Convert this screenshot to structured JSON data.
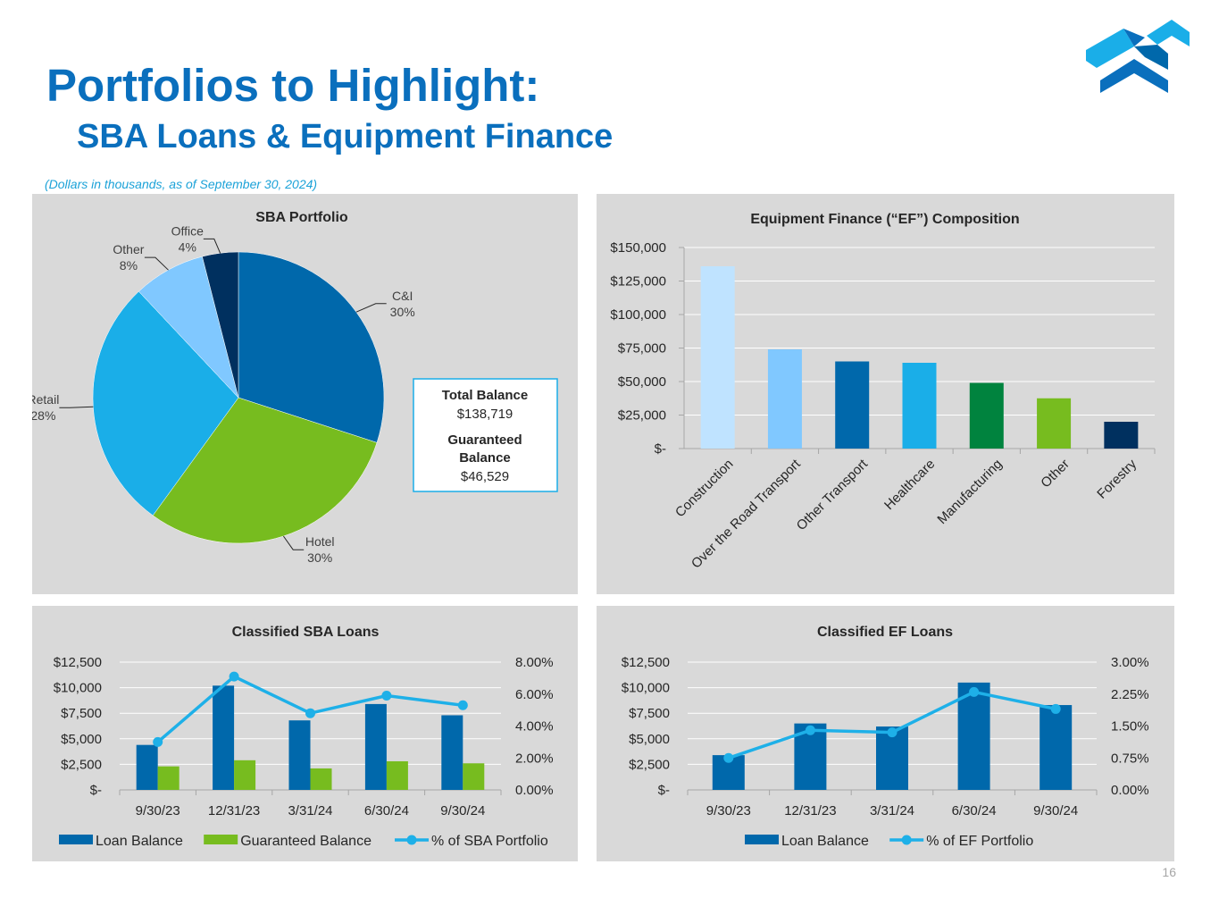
{
  "header": {
    "title": "Portfolios to Highlight:",
    "subtitle": "SBA Loans & Equipment Finance",
    "note": "(Dollars in thousands, as of September 30, 2024)"
  },
  "page_number": "16",
  "colors": {
    "accent": "#0a6fbd",
    "dark_blue": "#0068ab",
    "navy": "#00305f",
    "sky": "#1aaee8",
    "light_sky": "#80c8ff",
    "pale_sky": "#bfe3ff",
    "green": "#77bc1f",
    "dark_green": "#00833e",
    "line": "#1eb0e8",
    "panel": "#d9d9d9"
  },
  "chart_data": [
    {
      "type": "pie",
      "title": "SBA Portfolio",
      "labels": [
        "C&I",
        "Hotel",
        "Retail",
        "Other",
        "Office"
      ],
      "values": [
        30,
        30,
        28,
        8,
        4
      ],
      "value_labels": [
        "30%",
        "30%",
        "28%",
        "8%",
        "4%"
      ],
      "colors": [
        "#0068ab",
        "#77bc1f",
        "#1aaee8",
        "#80c8ff",
        "#00305f"
      ],
      "info_box": {
        "total_label": "Total Balance",
        "total_value": "$138,719",
        "guaranteed_label_1": "Guaranteed",
        "guaranteed_label_2": "Balance",
        "guaranteed_value": "$46,529"
      }
    },
    {
      "type": "bar",
      "title": "Equipment Finance (“EF”) Composition",
      "categories": [
        "Construction",
        "Over the Road Transport",
        "Other Transport",
        "Healthcare",
        "Manufacturing",
        "Other",
        "Forestry"
      ],
      "values": [
        136000,
        74000,
        65000,
        64000,
        49000,
        37500,
        20000
      ],
      "colors": [
        "#bfe3ff",
        "#80c8ff",
        "#0068ab",
        "#1aaee8",
        "#00833e",
        "#77bc1f",
        "#00305f"
      ],
      "ylim": [
        0,
        150000
      ],
      "yticks": [
        0,
        25000,
        50000,
        75000,
        100000,
        125000,
        150000
      ],
      "ytick_labels": [
        "$-",
        "$25,000",
        "$50,000",
        "$75,000",
        "$100,000",
        "$125,000",
        "$150,000"
      ],
      "grid": true
    },
    {
      "type": "bar",
      "title": "Classified SBA Loans",
      "categories": [
        "9/30/23",
        "12/31/23",
        "3/31/24",
        "6/30/24",
        "9/30/24"
      ],
      "series": [
        {
          "name": "Loan Balance",
          "type": "bar",
          "color": "#0068ab",
          "values": [
            4400,
            10200,
            6800,
            8400,
            7300
          ]
        },
        {
          "name": "Guaranteed Balance",
          "type": "bar",
          "color": "#77bc1f",
          "values": [
            2300,
            2900,
            2100,
            2800,
            2600
          ]
        },
        {
          "name": "% of SBA Portfolio",
          "type": "line",
          "axis": "right",
          "color": "#1eb0e8",
          "values": [
            3.0,
            7.1,
            4.8,
            5.9,
            5.3
          ]
        }
      ],
      "ylim": [
        0,
        12500
      ],
      "yticks": [
        0,
        2500,
        5000,
        7500,
        10000,
        12500
      ],
      "ytick_labels": [
        "$-",
        "$2,500",
        "$5,000",
        "$7,500",
        "$10,000",
        "$12,500"
      ],
      "y2lim": [
        0,
        8
      ],
      "y2ticks": [
        0,
        2,
        4,
        6,
        8
      ],
      "y2tick_labels": [
        "0.00%",
        "2.00%",
        "4.00%",
        "6.00%",
        "8.00%"
      ],
      "legend": "bottom",
      "grid": true
    },
    {
      "type": "bar",
      "title": "Classified EF Loans",
      "categories": [
        "9/30/23",
        "12/31/23",
        "3/31/24",
        "6/30/24",
        "9/30/24"
      ],
      "series": [
        {
          "name": "Loan Balance",
          "type": "bar",
          "color": "#0068ab",
          "values": [
            3400,
            6500,
            6200,
            10500,
            8300
          ]
        },
        {
          "name": "% of EF Portfolio",
          "type": "line",
          "axis": "right",
          "color": "#1eb0e8",
          "values": [
            0.75,
            1.4,
            1.35,
            2.3,
            1.9
          ]
        }
      ],
      "ylim": [
        0,
        12500
      ],
      "yticks": [
        0,
        2500,
        5000,
        7500,
        10000,
        12500
      ],
      "ytick_labels": [
        "$-",
        "$2,500",
        "$5,000",
        "$7,500",
        "$10,000",
        "$12,500"
      ],
      "y2lim": [
        0,
        3
      ],
      "y2ticks": [
        0,
        0.75,
        1.5,
        2.25,
        3
      ],
      "y2tick_labels": [
        "0.00%",
        "0.75%",
        "1.50%",
        "2.25%",
        "3.00%"
      ],
      "legend": "bottom",
      "grid": true
    }
  ]
}
